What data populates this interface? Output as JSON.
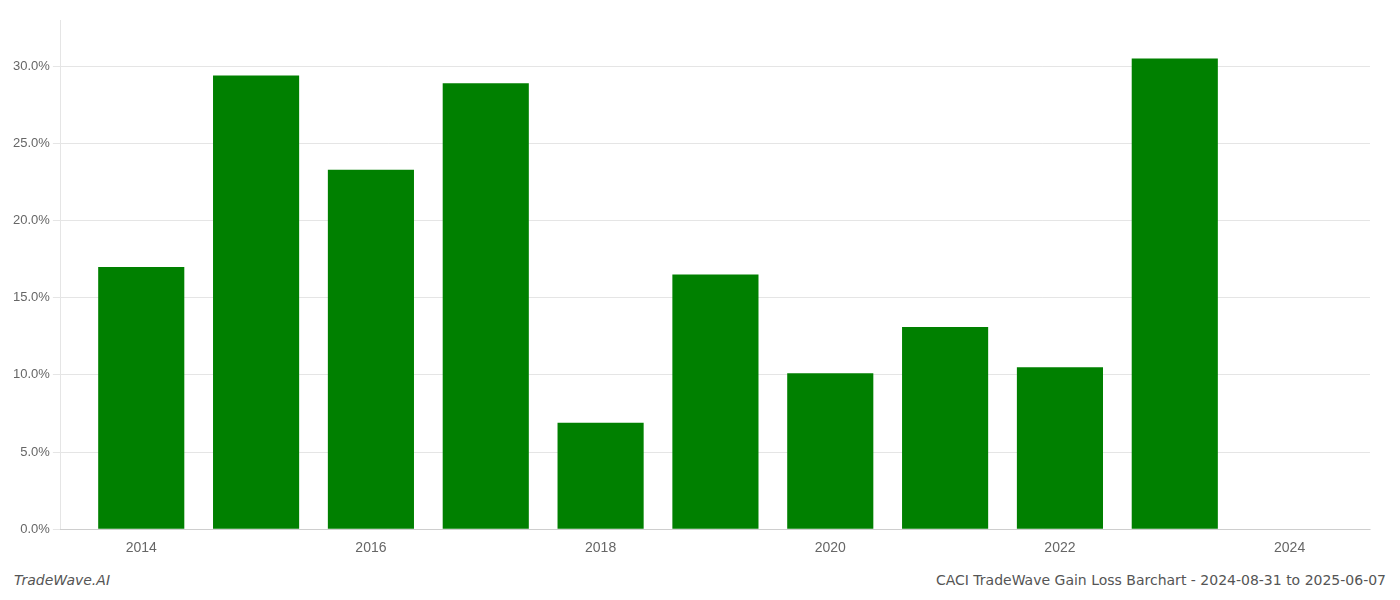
{
  "chart_data": {
    "type": "bar",
    "x": [
      2014,
      2015,
      2016,
      2017,
      2018,
      2019,
      2020,
      2021,
      2022,
      2023
    ],
    "values": [
      0.17,
      0.294,
      0.233,
      0.289,
      0.069,
      0.165,
      0.101,
      0.131,
      0.105,
      0.305
    ],
    "color": "#008000",
    "xlim": [
      2013.3,
      2024.7
    ],
    "xticks": [
      2014,
      2016,
      2018,
      2020,
      2022,
      2024
    ],
    "ylim": [
      0,
      0.33
    ],
    "yticks": [
      {
        "value": 0.0,
        "label": "0.0%"
      },
      {
        "value": 0.05,
        "label": "5.0%"
      },
      {
        "value": 0.1,
        "label": "10.0%"
      },
      {
        "value": 0.15,
        "label": "15.0%"
      },
      {
        "value": 0.2,
        "label": "20.0%"
      },
      {
        "value": 0.25,
        "label": "25.0%"
      },
      {
        "value": 0.3,
        "label": "30.0%"
      }
    ],
    "grid": "y",
    "annotations": [
      "TradeWave.AI",
      "CACI TradeWave Gain Loss Barchart - 2024-08-31 to 2025-06-07"
    ]
  }
}
